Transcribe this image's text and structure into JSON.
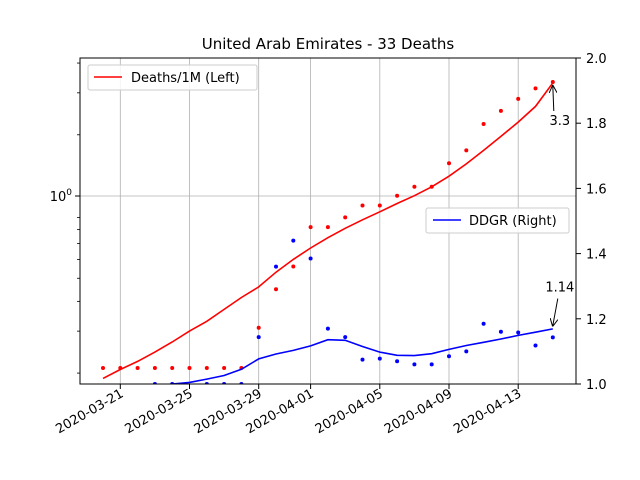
{
  "chart_data": {
    "type": "line",
    "title": "United Arab Emirates - 33 Deaths",
    "x_dates": [
      "2020-03-20",
      "2020-03-21",
      "2020-03-22",
      "2020-03-23",
      "2020-03-24",
      "2020-03-25",
      "2020-03-26",
      "2020-03-27",
      "2020-03-28",
      "2020-03-29",
      "2020-03-30",
      "2020-03-31",
      "2020-04-01",
      "2020-04-02",
      "2020-04-03",
      "2020-04-04",
      "2020-04-05",
      "2020-04-06",
      "2020-04-07",
      "2020-04-08",
      "2020-04-09",
      "2020-04-10",
      "2020-04-11",
      "2020-04-12",
      "2020-04-13",
      "2020-04-14",
      "2020-04-15"
    ],
    "x_tick_labels": [
      "2020-03-21",
      "2020-03-25",
      "2020-03-29",
      "2020-04-01",
      "2020-04-05",
      "2020-04-09",
      "2020-04-13"
    ],
    "left_axis": {
      "scale": "log",
      "tick_labels": [
        "10^0"
      ],
      "tick_values": [
        1
      ],
      "range": [
        0.18,
        4.2
      ]
    },
    "right_axis": {
      "scale": "linear",
      "tick_labels": [
        "1.0",
        "1.2",
        "1.4",
        "1.6",
        "1.8",
        "2.0"
      ],
      "tick_values": [
        1.0,
        1.2,
        1.4,
        1.6,
        1.8,
        2.0
      ],
      "range": [
        1.0,
        2.0
      ]
    },
    "grid": "x",
    "series": [
      {
        "name": "Deaths/1M (Left)",
        "color": "#ff0000",
        "axis": "left",
        "points": [
          0.21,
          0.21,
          0.21,
          0.21,
          0.21,
          0.21,
          0.21,
          0.21,
          0.21,
          0.31,
          0.45,
          0.56,
          0.82,
          0.82,
          0.9,
          1.01,
          1.01,
          1.11,
          1.21,
          1.21,
          1.52,
          1.72,
          2.22,
          2.52,
          2.83,
          3.13,
          3.33
        ],
        "smoothed": [
          0.19,
          0.207,
          0.224,
          0.245,
          0.27,
          0.3,
          0.33,
          0.37,
          0.415,
          0.46,
          0.53,
          0.6,
          0.67,
          0.74,
          0.81,
          0.88,
          0.95,
          1.03,
          1.11,
          1.21,
          1.34,
          1.51,
          1.72,
          1.97,
          2.26,
          2.63,
          3.3
        ]
      },
      {
        "name": "DDGR (Right)",
        "color": "#0000ff",
        "axis": "right",
        "points": [
          0.99,
          0.98,
          0.98,
          1.0,
          1.0,
          0.99,
          1.0,
          1.0,
          1.0,
          1.144,
          1.36,
          1.44,
          1.385,
          1.17,
          1.144,
          1.075,
          1.078,
          1.07,
          1.06,
          1.06,
          1.085,
          1.1,
          1.185,
          1.16,
          1.158,
          1.118,
          1.143
        ],
        "smoothed": [
          0.98,
          0.985,
          0.99,
          0.995,
          1.0,
          1.005,
          1.015,
          1.026,
          1.045,
          1.077,
          1.092,
          1.103,
          1.117,
          1.136,
          1.134,
          1.115,
          1.098,
          1.088,
          1.087,
          1.093,
          1.106,
          1.118,
          1.128,
          1.138,
          1.149,
          1.159,
          1.169
        ]
      }
    ],
    "legend": [
      {
        "label": "Deaths/1M (Left)",
        "position": "top-left"
      },
      {
        "label": "DDGR (Right)",
        "position": "center-right"
      }
    ],
    "annotations": [
      {
        "text": "3.3",
        "series": "Deaths/1M (Left)",
        "x": "2020-04-15",
        "y": 3.3
      },
      {
        "text": "1.14",
        "series": "DDGR (Right)",
        "x": "2020-04-15",
        "y": 1.14
      }
    ]
  }
}
